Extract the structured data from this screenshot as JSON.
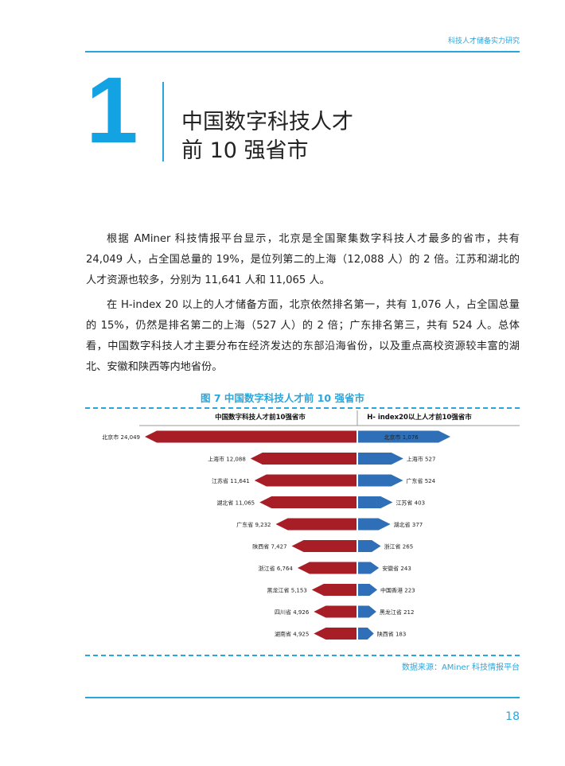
{
  "header": {
    "title": "科技人才储备实力研究"
  },
  "chapter": {
    "number": "1",
    "title_line1": "中国数字科技人才",
    "title_line2": "前 10 强省市"
  },
  "paragraphs": [
    "根据 AMiner 科技情报平台显示，北京是全国聚集数字科技人才最多的省市，共有 24,049 人，占全国总量的 19%，是位列第二的上海（12,088 人）的 2 倍。江苏和湖北的人才资源也较多，分别为 11,641 人和 11,065 人。",
    "在 H-index 20 以上的人才储备方面，北京依然排名第一，共有 1,076 人，占全国总量的 15%，仍然是排名第二的上海（527 人）的 2 倍；广东排名第三，共有 524 人。总体看，中国数字科技人才主要分布在经济发达的东部沿海省份，以及重点高校资源较丰富的湖北、安徽和陕西等内地省份。"
  ],
  "figure": {
    "title": "图 7  中国数字科技人才前 10 强省市",
    "source": "数据来源：AMiner 科技情报平台"
  },
  "chart_data": [
    {
      "type": "bar",
      "title": "中国数字科技人才前10强省市",
      "orientation": "horizontal-left",
      "color": "#a81e27",
      "categories": [
        "北京市",
        "上海市",
        "江苏省",
        "湖北省",
        "广东省",
        "陕西省",
        "浙江省",
        "黑龙江省",
        "四川省",
        "湖南省"
      ],
      "values": [
        24049,
        12088,
        11641,
        11065,
        9232,
        7427,
        6764,
        5153,
        4926,
        4925
      ],
      "labels": [
        "北京市 24,049",
        "上海市 12,088",
        "江苏省 11,641",
        "湖北省 11,065",
        "广东省 9,232",
        "陕西省 7,427",
        "浙江省 6,764",
        "黑龙江省 5,153",
        "四川省 4,926",
        "湖南省 4,925"
      ]
    },
    {
      "type": "bar",
      "title": "H- index20以上人才前10强省市",
      "orientation": "horizontal-right",
      "color": "#2e6fb7",
      "categories": [
        "北京市",
        "上海市",
        "广东省",
        "江苏省",
        "湖北省",
        "浙江省",
        "安徽省",
        "中国香港",
        "黑龙江省",
        "陕西省"
      ],
      "values": [
        1076,
        527,
        524,
        403,
        377,
        265,
        243,
        223,
        212,
        183
      ],
      "labels": [
        "北京市 1,076",
        "上海市 527",
        "广东省 524",
        "江苏省 403",
        "湖北省 377",
        "浙江省 265",
        "安徽省 243",
        "中国香港 223",
        "黑龙江省 212",
        "陕西省 183"
      ]
    }
  ],
  "footer": {
    "page_number": "18"
  }
}
